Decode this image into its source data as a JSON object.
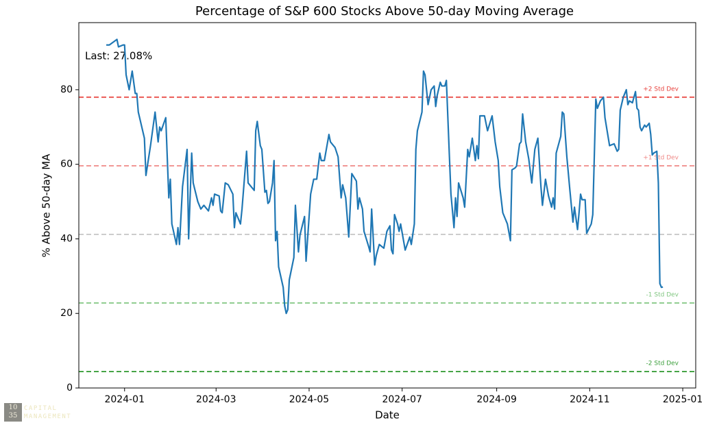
{
  "chart_data": {
    "type": "line",
    "title": "Percentage of S&P 600 Stocks Above 50-day Moving Average",
    "x_label": "Date",
    "y_label": "% Above 50-day MA",
    "annotation": "Last: 27.08%",
    "x": [
      -12,
      -10,
      -5,
      -4,
      -1,
      0,
      1,
      3,
      5,
      7,
      8,
      9,
      13,
      14,
      17,
      20,
      22,
      23,
      24,
      27,
      29,
      30,
      31,
      34,
      35,
      36,
      38,
      41,
      42,
      44,
      45,
      48,
      50,
      52,
      55,
      57,
      58,
      59,
      62,
      63,
      64,
      66,
      68,
      71,
      72,
      73,
      76,
      77,
      80,
      81,
      83,
      85,
      86,
      87,
      89,
      90,
      92,
      93,
      94,
      95,
      97,
      98,
      99,
      100,
      101,
      104,
      105,
      106,
      107,
      108,
      111,
      112,
      114,
      115,
      118,
      119,
      122,
      124,
      126,
      128,
      129,
      131,
      134,
      135,
      138,
      140,
      142,
      143,
      145,
      147,
      149,
      152,
      153,
      154,
      156,
      157,
      160,
      161,
      162,
      164,
      165,
      167,
      170,
      172,
      174,
      175,
      176,
      177,
      179,
      180,
      181,
      184,
      187,
      188,
      190,
      191,
      192,
      195,
      196,
      197,
      199,
      201,
      203,
      204,
      205,
      207,
      208,
      210,
      211,
      213,
      214,
      216,
      217,
      218,
      219,
      222,
      223,
      225,
      226,
      228,
      230,
      231,
      232,
      233,
      236,
      238,
      241,
      243,
      245,
      246,
      248,
      251,
      253,
      254,
      256,
      257,
      259,
      260,
      261,
      263,
      265,
      267,
      269,
      271,
      273,
      274,
      276,
      278,
      280,
      281,
      282,
      283,
      286,
      287,
      288,
      290,
      292,
      294,
      295,
      297,
      298,
      299,
      300,
      302,
      303,
      306,
      307,
      309,
      310,
      312,
      314,
      315,
      318,
      321,
      323,
      324,
      325,
      327,
      329,
      330,
      331,
      333,
      335,
      336,
      337,
      338,
      339,
      341,
      342,
      344,
      345,
      346,
      347,
      349,
      350,
      351,
      352,
      353
    ],
    "series": [
      {
        "color": "#1f77b4",
        "values": [
          92,
          92,
          93.5,
          91.5,
          92,
          92,
          84,
          80,
          85,
          79,
          79,
          74,
          67,
          57,
          65,
          74,
          66,
          70,
          69,
          72.5,
          51,
          56,
          44,
          38.5,
          43,
          38.5,
          54,
          64,
          40,
          63,
          55,
          50,
          48,
          49,
          47.5,
          51,
          49,
          52,
          51.5,
          47.5,
          47,
          55,
          54.5,
          52,
          43,
          47,
          44,
          48,
          63.5,
          55,
          54,
          53,
          69,
          71.5,
          65,
          64,
          52.5,
          53,
          49.5,
          50,
          55,
          61,
          39.5,
          42,
          32.5,
          27,
          22,
          20,
          21,
          29,
          35,
          49,
          36.5,
          41,
          46,
          34,
          52,
          56,
          56,
          63,
          61,
          61,
          68,
          66,
          64.5,
          62,
          51,
          54.5,
          51,
          40.5,
          57.5,
          55.5,
          48,
          51,
          48,
          42,
          38,
          36.5,
          48,
          33,
          35.5,
          38.5,
          37.5,
          42,
          43.5,
          37,
          36,
          46.5,
          44,
          42,
          44,
          37,
          40.5,
          38.5,
          44,
          64,
          69,
          74,
          85,
          84,
          76,
          80,
          81,
          75.5,
          78.5,
          82,
          81,
          81,
          82.5,
          62,
          52,
          43,
          51,
          46,
          55,
          51,
          48.5,
          64,
          62,
          67,
          61,
          65,
          61.5,
          73,
          73,
          69,
          73,
          66,
          61,
          54,
          47,
          44,
          39.5,
          58.5,
          59,
          59.5,
          65.5,
          66,
          73.5,
          66,
          61.5,
          55,
          64,
          67,
          54,
          49,
          56,
          51.5,
          48.5,
          51,
          48,
          63,
          67.5,
          74,
          73.5,
          62,
          53,
          44.5,
          48.5,
          42.5,
          47,
          52,
          50.5,
          50.5,
          41.5,
          44,
          46.5,
          77.5,
          75,
          77,
          78,
          72.5,
          65,
          65.5,
          63.5,
          64,
          74.5,
          78,
          80,
          76,
          77,
          76.5,
          79.5,
          75,
          74.5,
          70,
          69,
          70.5,
          70,
          71,
          68,
          62.5,
          63,
          63.5,
          55,
          28,
          27,
          27.08
        ]
      }
    ],
    "reference_lines": [
      {
        "value": 78,
        "label": "+2 Std Dev",
        "color": "#e8413c"
      },
      {
        "value": 59.6,
        "label": "+1 Std Dev",
        "color": "#ef8886"
      },
      {
        "value": 41.2,
        "color": "#c9c9c9"
      },
      {
        "value": 22.8,
        "label": "-1 Std Dev",
        "color": "#80c680"
      },
      {
        "value": 4.4,
        "label": "-2 Std Dev",
        "color": "#3a9e3a"
      }
    ],
    "xlim": [
      -30,
      374.5
    ],
    "ylim": [
      0,
      98
    ],
    "xticks": [
      {
        "value": 0,
        "label": "2024-01"
      },
      {
        "value": 60,
        "label": "2024-03"
      },
      {
        "value": 121,
        "label": "2024-05"
      },
      {
        "value": 182,
        "label": "2024-07"
      },
      {
        "value": 244,
        "label": "2024-09"
      },
      {
        "value": 305,
        "label": "2024-11"
      },
      {
        "value": 366,
        "label": "2025-01"
      }
    ],
    "yticks": [
      0,
      20,
      40,
      60,
      80
    ]
  },
  "logo": {
    "top": "10",
    "bottom": "35",
    "line1": "CAPITAL",
    "line2": "MANAGEMENT"
  }
}
